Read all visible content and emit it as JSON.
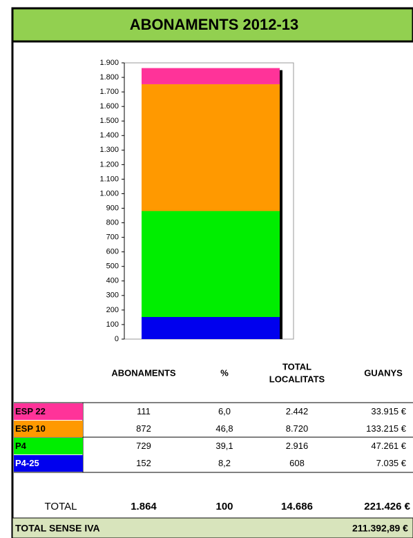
{
  "chart_data": {
    "type": "bar",
    "stacked": true,
    "title": "ABONAMENTS 2012-13",
    "categories": [
      null
    ],
    "series": [
      {
        "name": "ESP 22",
        "color": "#ff3399",
        "values": [
          111
        ]
      },
      {
        "name": "ESP 10",
        "color": "#ff9900",
        "values": [
          872
        ]
      },
      {
        "name": "P4",
        "color": "#00ee00",
        "values": [
          729
        ]
      },
      {
        "name": "P4-25",
        "color": "#0000ee",
        "values": [
          152
        ]
      }
    ],
    "ylim": [
      0,
      1900
    ],
    "yticks": [
      0,
      100,
      200,
      300,
      400,
      500,
      600,
      700,
      800,
      900,
      {
        "value": 1000,
        "label": "1.000"
      },
      {
        "value": 1100,
        "label": "1.100"
      },
      {
        "value": 1200,
        "label": "1.200"
      },
      {
        "value": 1300,
        "label": "1.300"
      },
      {
        "value": 1400,
        "label": "1.400"
      },
      {
        "value": 1500,
        "label": "1.500"
      },
      {
        "value": 1600,
        "label": "1.600"
      },
      {
        "value": 1700,
        "label": "1.700"
      },
      {
        "value": 1800,
        "label": "1.800"
      },
      {
        "value": 1900,
        "label": "1.900"
      }
    ]
  },
  "table": {
    "headers": [
      "ABONAMENTS",
      "%",
      [
        "TOTAL",
        "LOCALITATS"
      ],
      "GUANYS"
    ],
    "rows": [
      {
        "pct": "6,0",
        "localitats": "2.442",
        "guanys": "33.915 €"
      },
      {
        "pct": "46,8",
        "localitats": "8.720",
        "guanys": "133.215 €"
      },
      {
        "pct": "39,1",
        "localitats": "2.916",
        "guanys": "47.261 €"
      },
      {
        "pct": "8,2",
        "localitats": "608",
        "guanys": "7.035 €"
      }
    ],
    "total": {
      "label": "TOTAL",
      "values": [
        "1.864",
        "100",
        "14.686",
        "221.426 €"
      ]
    },
    "footer": {
      "label": "TOTAL SENSE IVA",
      "value": "211.392,89 €"
    }
  }
}
